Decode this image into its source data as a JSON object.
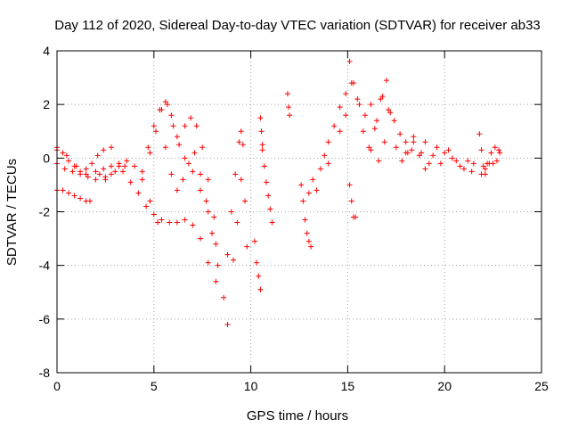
{
  "chart_data": {
    "type": "scatter",
    "title": "Day 112 of 2020, Sidereal Day-to-day VTEC variation (SDTVAR) for receiver ab33",
    "xlabel": "GPS time / hours",
    "ylabel": "SDTVAR / TECUs",
    "xlim": [
      0,
      25
    ],
    "ylim": [
      -8,
      4
    ],
    "grid": true,
    "marker": "+",
    "series_color": "#ff0000",
    "x_ticks": [
      0,
      5,
      10,
      15,
      20,
      25
    ],
    "x_tick_labels": [
      "0",
      "5",
      "10",
      "15",
      "20",
      "25"
    ],
    "y_ticks": [
      -8,
      -6,
      -4,
      -2,
      0,
      2,
      4
    ],
    "y_tick_labels": [
      "-8",
      "-6",
      "-4",
      "-2",
      "0",
      "2",
      "4"
    ],
    "series": [
      {
        "name": "SDTVAR",
        "tracks": [
          {
            "x": [
              0,
              0.3,
              0.6,
              0.9,
              1.2,
              1.5,
              1.8,
              2.1,
              2.4,
              2.8
            ],
            "y": [
              0.3,
              0.2,
              -0.1,
              -0.3,
              -0.5,
              -0.4,
              -0.2,
              0.1,
              0.3,
              0.4
            ]
          },
          {
            "x": [
              0,
              0.4,
              0.8,
              1.2,
              1.6,
              2.0,
              2.4,
              2.8,
              3.2
            ],
            "y": [
              -0.2,
              -0.4,
              -0.5,
              -0.6,
              -0.7,
              -0.5,
              -0.4,
              -0.3,
              -0.2
            ]
          },
          {
            "x": [
              0,
              0.3,
              0.6,
              0.9,
              1.2,
              1.5,
              1.7
            ],
            "y": [
              -1.2,
              -1.2,
              -1.3,
              -1.4,
              -1.5,
              -1.6,
              -1.6
            ]
          },
          {
            "x": [
              0,
              0.5,
              1.0,
              1.5,
              2.0,
              2.5,
              3.0,
              3.5
            ],
            "y": [
              0.4,
              0.1,
              -0.3,
              -0.6,
              -0.8,
              -0.7,
              -0.5,
              -0.3
            ]
          },
          {
            "x": [
              2.2,
              2.5,
              2.8,
              3.2,
              3.6,
              4.0,
              4.4,
              4.8,
              5.2
            ],
            "y": [
              -0.6,
              -0.8,
              -0.6,
              -0.3,
              -0.1,
              -0.3,
              -0.8,
              -1.6,
              -2.4
            ]
          },
          {
            "x": [
              3.4,
              3.8,
              4.2,
              4.6,
              5.0,
              5.4,
              5.8,
              6.2,
              6.6,
              7.0,
              7.4,
              7.8,
              8.2
            ],
            "y": [
              -0.5,
              -0.9,
              -1.3,
              -1.8,
              -2.1,
              -2.3,
              -2.4,
              -2.4,
              -2.3,
              -2.5,
              -3.0,
              -3.9,
              -4.6
            ]
          },
          {
            "x": [
              4.4,
              4.7,
              5.0,
              5.3,
              5.6,
              5.9,
              6.2,
              6.6,
              7.0,
              7.4,
              7.8,
              8.2
            ],
            "y": [
              -0.5,
              0.4,
              1.2,
              1.8,
              2.1,
              1.6,
              0.8,
              0.0,
              -0.5,
              -1.2,
              -2.0,
              -3.2
            ]
          },
          {
            "x": [
              4.8,
              5.1,
              5.4,
              5.7,
              6.0,
              6.3,
              6.6,
              6.9,
              7.2,
              7.5,
              7.8,
              8.1
            ],
            "y": [
              0.2,
              1.0,
              1.8,
              2.0,
              1.2,
              0.5,
              1.2,
              1.5,
              1.2,
              0.4,
              -0.8,
              -2.2
            ]
          },
          {
            "x": [
              5.6,
              5.9,
              6.2,
              6.5,
              6.8,
              7.1,
              7.4,
              7.7,
              8.0,
              8.3,
              8.6,
              8.8
            ],
            "y": [
              0.4,
              -0.6,
              -1.2,
              -0.8,
              -0.2,
              0.2,
              -0.6,
              -1.6,
              -2.8,
              -4.0,
              -5.2,
              -6.2
            ]
          },
          {
            "x": [
              8.8,
              9.0,
              9.2,
              9.4,
              9.5,
              9.6
            ],
            "y": [
              -3.6,
              -2.0,
              -0.6,
              0.6,
              1.0,
              0.5
            ]
          },
          {
            "x": [
              9.1,
              9.3,
              9.5,
              9.7,
              9.8
            ],
            "y": [
              -3.8,
              -2.4,
              -0.8,
              -1.6,
              -3.3
            ]
          },
          {
            "x": [
              10.2,
              10.3,
              10.4,
              10.5
            ],
            "y": [
              -3.1,
              -3.9,
              -4.4,
              -4.9
            ]
          },
          {
            "x": [
              10.5,
              10.55,
              10.6
            ],
            "y": [
              1.5,
              1.0,
              0.5
            ]
          },
          {
            "x": [
              10.6,
              10.7,
              10.8,
              10.9,
              11.0,
              11.1
            ],
            "y": [
              0.3,
              -0.3,
              -0.9,
              -1.4,
              -1.9,
              -2.4
            ]
          },
          {
            "x": [
              11.9,
              11.95,
              12.0
            ],
            "y": [
              2.4,
              1.9,
              1.6
            ]
          },
          {
            "x": [
              12.6,
              12.7,
              12.8,
              12.9,
              13.0,
              13.1
            ],
            "y": [
              -1.0,
              -1.6,
              -2.3,
              -2.8,
              -3.1,
              -3.3
            ]
          },
          {
            "x": [
              13.0,
              13.2,
              13.4,
              13.6,
              13.8,
              14.0
            ],
            "y": [
              -1.3,
              -0.8,
              -1.2,
              -0.4,
              0.1,
              -0.2
            ]
          },
          {
            "x": [
              14.0,
              14.3,
              14.6,
              14.9,
              15.1,
              15.3,
              15.6,
              15.9,
              16.2
            ],
            "y": [
              0.6,
              1.2,
              1.9,
              2.4,
              3.6,
              2.8,
              2.0,
              1.6,
              2.0
            ]
          },
          {
            "x": [
              14.6,
              14.9,
              15.2,
              15.5,
              15.8,
              16.1,
              16.4,
              16.7,
              17.0
            ],
            "y": [
              1.0,
              1.6,
              2.8,
              2.2,
              1.0,
              0.4,
              1.1,
              2.2,
              2.9
            ]
          },
          {
            "x": [
              15.1,
              15.2,
              15.3,
              15.4
            ],
            "y": [
              -1.0,
              -1.6,
              -2.2,
              -2.2
            ]
          },
          {
            "x": [
              16.2,
              16.5,
              16.8,
              17.1,
              17.4,
              17.7,
              18.0,
              18.3
            ],
            "y": [
              0.3,
              1.4,
              2.3,
              1.8,
              1.4,
              0.9,
              0.6,
              0.3
            ]
          },
          {
            "x": [
              16.6,
              16.9,
              17.2,
              17.5,
              17.8,
              18.1,
              18.4,
              18.7,
              19.0
            ],
            "y": [
              -0.1,
              0.6,
              1.7,
              0.4,
              -0.1,
              0.2,
              0.6,
              0.1,
              -0.4
            ]
          },
          {
            "x": [
              18.0,
              18.4,
              18.8,
              19.2,
              19.6,
              20.0,
              20.4,
              20.8,
              21.2,
              21.5
            ],
            "y": [
              0.2,
              0.8,
              0.2,
              -0.2,
              0.4,
              0.2,
              0.0,
              -0.3,
              -0.1,
              -0.2
            ]
          },
          {
            "x": [
              19.0,
              19.4,
              19.8,
              20.2,
              20.6,
              21.0,
              21.4
            ],
            "y": [
              0.6,
              0.1,
              -0.2,
              0.3,
              -0.1,
              -0.4,
              -0.5
            ]
          },
          {
            "x": [
              21.8,
              21.9,
              22.0,
              22.1,
              22.2,
              22.4,
              22.6,
              22.8
            ],
            "y": [
              0.9,
              0.3,
              -0.3,
              -0.6,
              -0.2,
              0.2,
              0.4,
              0.3
            ]
          },
          {
            "x": [
              21.9,
              22.1,
              22.3,
              22.5,
              22.7,
              22.85
            ],
            "y": [
              -0.6,
              -0.4,
              -0.2,
              -0.2,
              -0.1,
              0.2
            ]
          }
        ]
      }
    ]
  }
}
